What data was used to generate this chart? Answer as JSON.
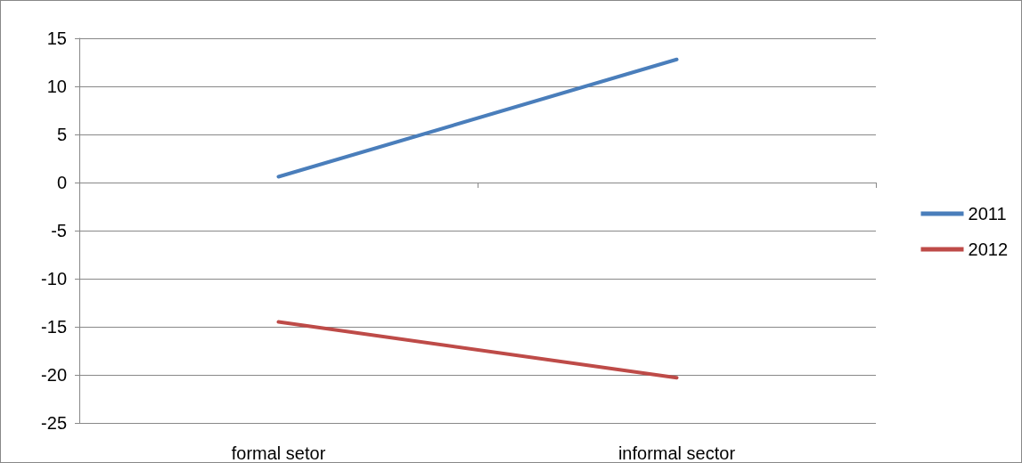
{
  "chart_data": {
    "type": "line",
    "categories": [
      "formal setor",
      "informal sector"
    ],
    "series": [
      {
        "name": "2011",
        "color": "#4a7ebb",
        "values": [
          0.6,
          12.8
        ]
      },
      {
        "name": "2012",
        "color": "#be4b48",
        "values": [
          -14.5,
          -20.3
        ]
      }
    ],
    "ylim": [
      -25,
      15
    ],
    "yticks": [
      -25,
      -20,
      -15,
      -10,
      -5,
      0,
      5,
      10,
      15
    ],
    "grid": "y",
    "legend": "right",
    "marker": "none",
    "line_style": "solid"
  }
}
